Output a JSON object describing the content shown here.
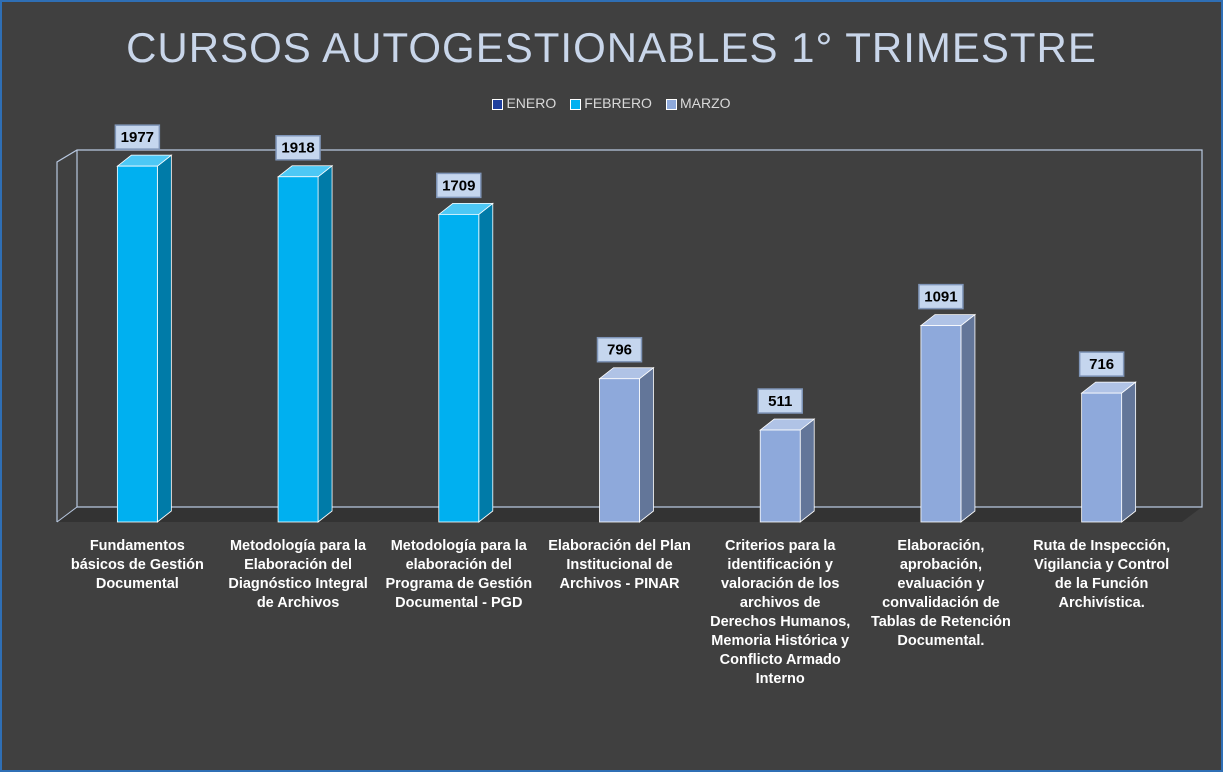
{
  "chart_data": {
    "type": "bar3d",
    "title": "CURSOS AUTOGESTIONABLES 1° TRIMESTRE",
    "categories": [
      "Fundamentos básicos de Gestión Documental",
      "Metodología para la Elaboración del Diagnóstico Integral de Archivos",
      "Metodología para la elaboración del Programa de Gestión Documental - PGD",
      "Elaboración del Plan Institucional de Archivos - PINAR",
      "Criterios para la identificación y valoración de los archivos de Derechos Humanos, Memoria Histórica y Conflicto Armado Interno",
      "Elaboración, aprobación, evaluación y convalidación de Tablas de Retención Documental.",
      "Ruta de Inspección, Vigilancia y Control de la Función Archivística."
    ],
    "series": [
      {
        "name": "ENERO",
        "color": "#1f3f9e",
        "values": [
          null,
          null,
          null,
          null,
          null,
          null,
          null
        ]
      },
      {
        "name": "FEBRERO",
        "color": "#00b0f0",
        "values": [
          1977,
          1918,
          1709,
          null,
          null,
          null,
          null
        ]
      },
      {
        "name": "MARZO",
        "color": "#8ea9db",
        "values": [
          null,
          null,
          null,
          796,
          511,
          1091,
          716
        ]
      }
    ],
    "ylim": [
      0,
      2000
    ]
  }
}
